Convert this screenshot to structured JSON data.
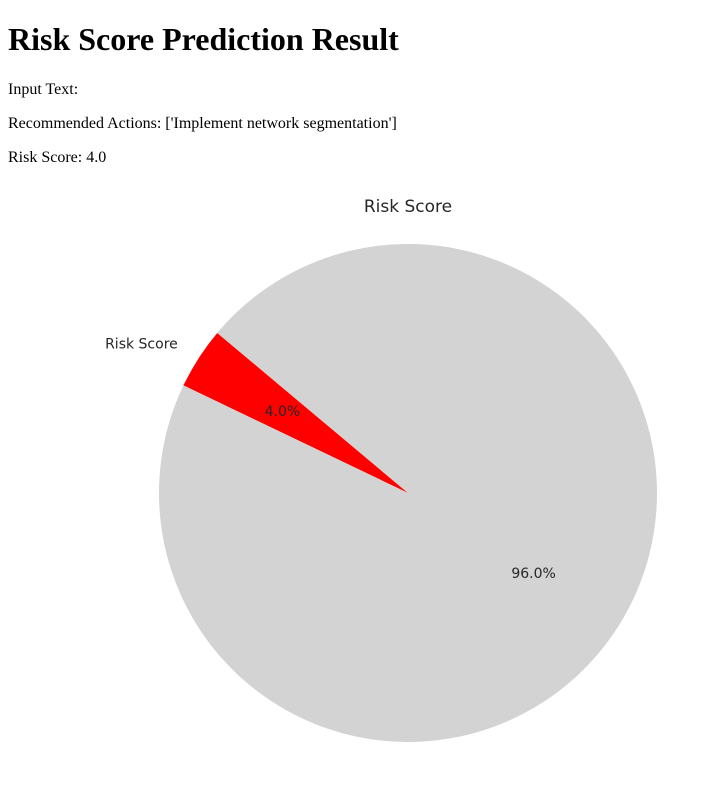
{
  "page": {
    "title": "Risk Score Prediction Result",
    "input_text_label": "Input Text:",
    "recommended_actions": "Recommended Actions: ['Implement network segmentation']",
    "risk_score": "Risk Score: 4.0"
  },
  "chart_data": {
    "type": "pie",
    "title": "Risk Score",
    "slices": [
      {
        "label": "Risk Score",
        "value": 4.0,
        "pct_label": "4.0%",
        "color": "#ff0000"
      },
      {
        "label": "",
        "value": 96.0,
        "pct_label": "96.0%",
        "color": "#d3d3d3"
      }
    ],
    "start_angle_deg": 140,
    "counterclock": true
  }
}
